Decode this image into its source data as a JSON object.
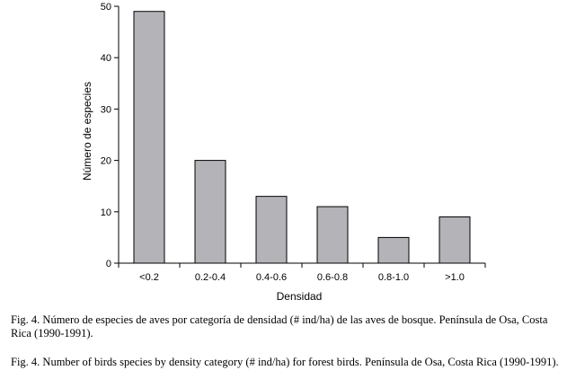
{
  "chart_data": {
    "type": "bar",
    "categories": [
      "<0.2",
      "0.2-0.4",
      "0.4-0.6",
      "0.6-0.8",
      "0.8-1.0",
      ">1.0"
    ],
    "values": [
      49,
      20,
      13,
      11,
      5,
      9
    ],
    "xlabel": "Densidad",
    "ylabel": "Número de especies",
    "ylim": [
      0,
      50
    ],
    "yticks": [
      0,
      10,
      20,
      30,
      40,
      50
    ],
    "grid": false,
    "bar_color": "#b3b3b8",
    "bar_edge_color": "#000000"
  },
  "captions": {
    "spanish": "Fig. 4. Número de especies de aves por categoría de densidad (# ind/ha) de las aves de bosque. Península de Osa, Costa Rica (1990-1991).",
    "english": "Fig. 4. Number of birds species by density category (# ind/ha) for forest birds. Península de Osa, Costa Rica (1990-1991)."
  }
}
